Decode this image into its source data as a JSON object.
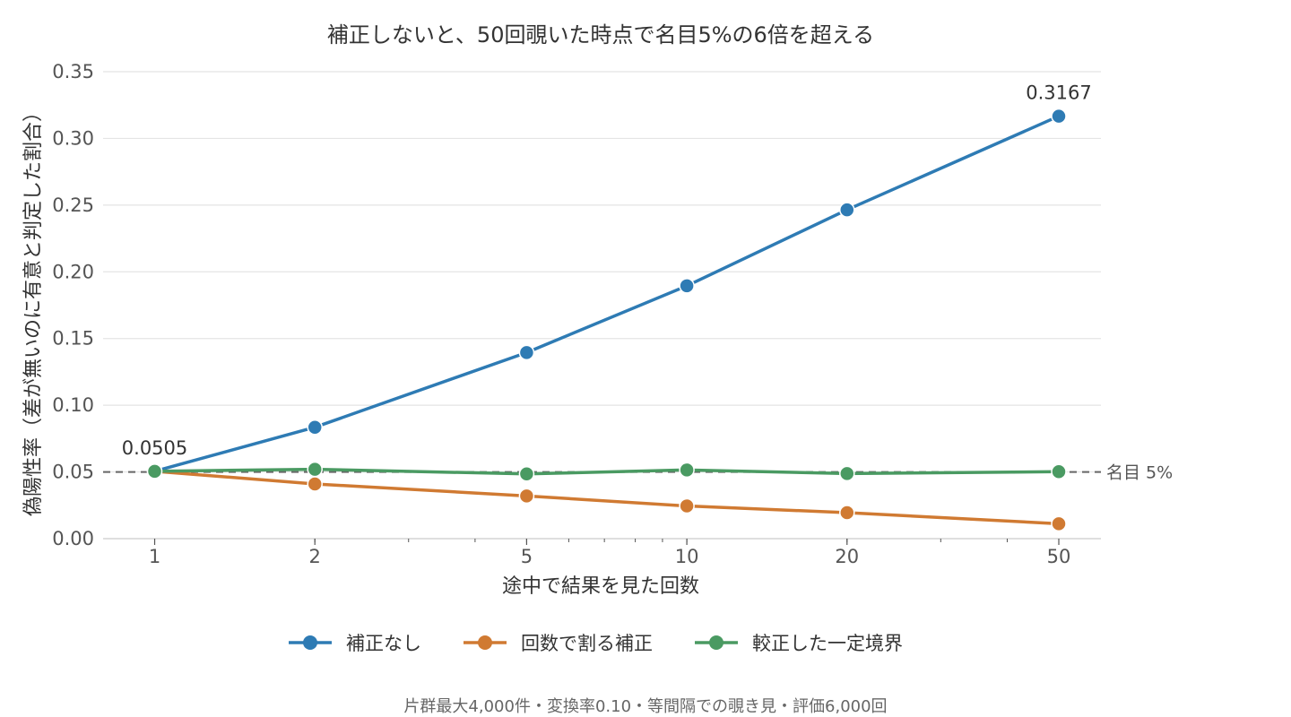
{
  "chart_data": {
    "type": "line",
    "title": "補正しないと、50回覗いた時点で名目5%の6倍を超える",
    "xlabel": "途中で結果を見た回数",
    "ylabel": "偽陽性率（差が無いのに有意と判定した割合）",
    "x_scale": "log",
    "x": [
      1,
      2,
      5,
      10,
      20,
      50
    ],
    "x_tick_labels": [
      "1",
      "2",
      "5",
      "10",
      "20",
      "50"
    ],
    "ylim": [
      0,
      0.35
    ],
    "y_ticks": [
      0,
      0.05,
      0.1,
      0.15,
      0.2,
      0.25,
      0.3,
      0.35
    ],
    "y_tick_labels": [
      "0.00",
      "0.05",
      "0.10",
      "0.15",
      "0.20",
      "0.25",
      "0.30",
      "0.35"
    ],
    "grid": "horizontal",
    "legend_position": "bottom",
    "series": [
      {
        "name": "補正なし",
        "color": "#2e7bb4",
        "values": [
          0.0505,
          0.0835,
          0.1395,
          0.1895,
          0.2465,
          0.3167
        ]
      },
      {
        "name": "回数で割る補正",
        "color": "#d07a32",
        "values": [
          0.0505,
          0.041,
          0.032,
          0.0245,
          0.0195,
          0.0112
        ]
      },
      {
        "name": "較正した一定境界",
        "color": "#4a9a62",
        "values": [
          0.0505,
          0.052,
          0.0485,
          0.0515,
          0.0488,
          0.0502
        ]
      }
    ],
    "reference_line": {
      "y": 0.05,
      "label": "名目 5%"
    },
    "annotations": [
      {
        "series": 0,
        "point": 0,
        "text": "0.0505"
      },
      {
        "series": 0,
        "point": 5,
        "text": "0.3167"
      }
    ],
    "caption": "片群最大4,000件・変換率0.10・等間隔での覗き見・評価6,000回"
  }
}
